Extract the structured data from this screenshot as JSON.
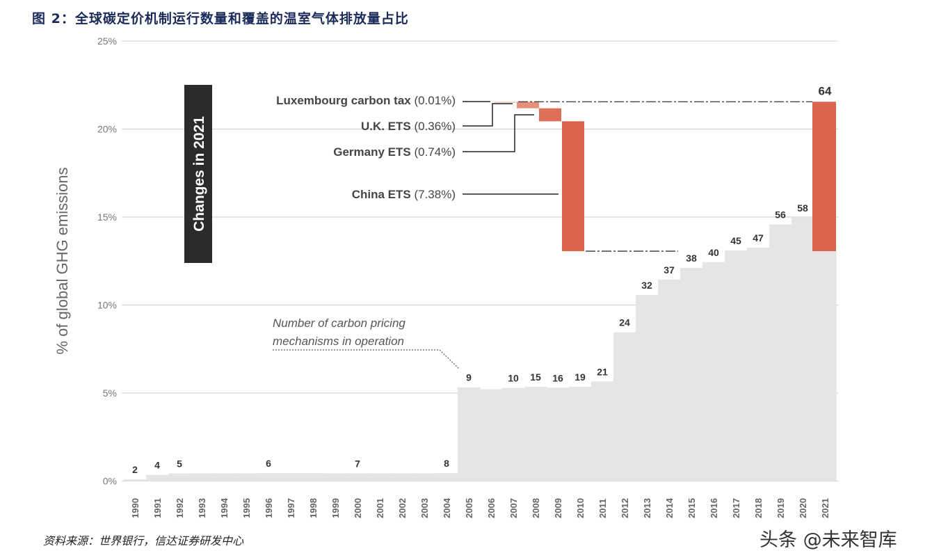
{
  "title": "图 2：全球碳定价机制运行数量和覆盖的温室气体排放量占比",
  "source": "资料来源：世界银行，信达证券研发中心",
  "watermark": "头条 @未来智库",
  "chart_data": {
    "type": "bar",
    "subtype": "step-area with waterfall",
    "ylabel": "% of global GHG emissions",
    "ylim": [
      0,
      25
    ],
    "yticks": [
      "0%",
      "5%",
      "10%",
      "15%",
      "20%",
      "25%"
    ],
    "grid": true,
    "categories": [
      "1990",
      "1991",
      "1992",
      "1993",
      "1994",
      "1995",
      "1996",
      "1997",
      "1998",
      "1999",
      "2000",
      "2001",
      "2002",
      "2003",
      "2004",
      "2005",
      "2006",
      "2007",
      "2008",
      "2009",
      "2010",
      "2011",
      "2012",
      "2013",
      "2014",
      "2015",
      "2016",
      "2017",
      "2018",
      "2019",
      "2020",
      "2021"
    ],
    "values": [
      0.1,
      0.35,
      0.43,
      0.44,
      0.44,
      0.44,
      0.45,
      0.45,
      0.45,
      0.44,
      0.44,
      0.44,
      0.44,
      0.44,
      0.45,
      5.33,
      5.22,
      5.29,
      5.36,
      5.3,
      5.36,
      5.66,
      8.45,
      10.57,
      11.45,
      12.11,
      12.44,
      13.1,
      13.26,
      14.58,
      14.97,
      13.06
    ],
    "count_labels": [
      "2",
      "4",
      "5",
      null,
      null,
      null,
      "6",
      null,
      null,
      null,
      "7",
      null,
      null,
      null,
      "8",
      "9",
      null,
      "10",
      "15",
      "16",
      "19",
      "21",
      "24",
      "32",
      "37",
      "38",
      "40",
      "45",
      "47",
      "56",
      "58",
      "64"
    ],
    "changes_2021": {
      "box_label": "Changes in 2021",
      "items": [
        {
          "name": "Luxembourg carbon tax",
          "value": "(0.01%)",
          "share": 0.01
        },
        {
          "name": "U.K. ETS",
          "value": "(0.36%)",
          "share": 0.36
        },
        {
          "name": "Germany ETS",
          "value": "(0.74%)",
          "share": 0.74
        },
        {
          "name": "China ETS",
          "value": "(7.38%)",
          "share": 7.38
        }
      ],
      "colors": [
        "#f2c3b5",
        "#e8907c",
        "#df6e58",
        "#d9634c"
      ]
    },
    "total_2021": 21.55,
    "annotation": [
      "Number of carbon pricing",
      "mechanisms in operation"
    ],
    "colors": {
      "area": "#e6e5e3",
      "red": "#d9634c",
      "box": "#2b2b2b"
    }
  }
}
